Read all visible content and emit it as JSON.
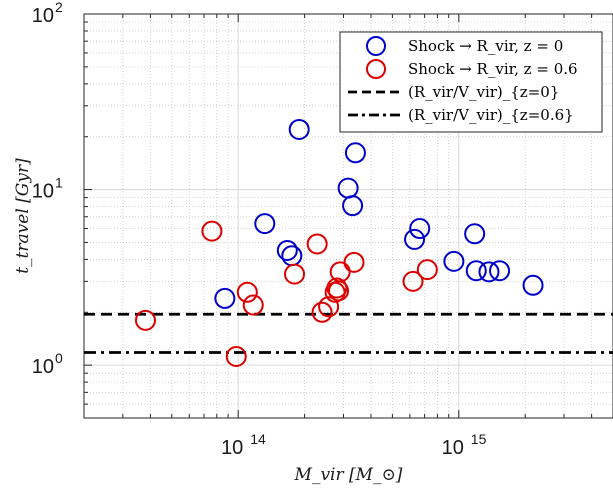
{
  "chart_data": {
    "type": "scatter",
    "title": "",
    "xlabel": "M_vir [M_⊙]",
    "ylabel": "t_travel [Gyr]",
    "xscale": "log",
    "yscale": "log",
    "xlim": [
      20000000000000,
      5000000000000000
    ],
    "ylim": [
      0.5,
      100
    ],
    "grid": true,
    "legend_position": "top-right",
    "x_ticks": [
      {
        "value": 100000000000000,
        "base": "10",
        "exp": "14"
      },
      {
        "value": 1000000000000000,
        "base": "10",
        "exp": "15"
      }
    ],
    "y_ticks": [
      {
        "value": 1,
        "base": "10",
        "exp": "0"
      },
      {
        "value": 10,
        "base": "10",
        "exp": "1"
      },
      {
        "value": 100,
        "base": "10",
        "exp": "2"
      }
    ],
    "series": [
      {
        "name": "Shock → R_vir, z = 0",
        "color": "#0000cc",
        "marker": "circle-open",
        "points": [
          {
            "x": 87000000000000,
            "y": 2.4
          },
          {
            "x": 132000000000000,
            "y": 6.4
          },
          {
            "x": 167000000000000,
            "y": 4.5
          },
          {
            "x": 175000000000000,
            "y": 4.2
          },
          {
            "x": 189000000000000,
            "y": 22
          },
          {
            "x": 315000000000000,
            "y": 10.2
          },
          {
            "x": 330000000000000,
            "y": 8.1
          },
          {
            "x": 340000000000000,
            "y": 16.2
          },
          {
            "x": 630000000000000,
            "y": 5.2
          },
          {
            "x": 665000000000000,
            "y": 6.0
          },
          {
            "x": 950000000000000,
            "y": 3.9
          },
          {
            "x": 1180000000000000,
            "y": 5.6
          },
          {
            "x": 1200000000000000,
            "y": 3.45
          },
          {
            "x": 1370000000000000,
            "y": 3.4
          },
          {
            "x": 1530000000000000,
            "y": 3.45
          },
          {
            "x": 2170000000000000,
            "y": 2.85
          }
        ]
      },
      {
        "name": "Shock → R_vir, z = 0.6",
        "color": "#dd0000",
        "marker": "circle-open",
        "points": [
          {
            "x": 38000000000000,
            "y": 1.8
          },
          {
            "x": 76000000000000,
            "y": 5.8
          },
          {
            "x": 98000000000000,
            "y": 1.12
          },
          {
            "x": 110000000000000,
            "y": 2.6
          },
          {
            "x": 117000000000000,
            "y": 2.2
          },
          {
            "x": 180000000000000,
            "y": 3.3
          },
          {
            "x": 228000000000000,
            "y": 4.9
          },
          {
            "x": 240000000000000,
            "y": 2.0
          },
          {
            "x": 257000000000000,
            "y": 2.15
          },
          {
            "x": 275000000000000,
            "y": 2.6
          },
          {
            "x": 280000000000000,
            "y": 2.75
          },
          {
            "x": 285000000000000,
            "y": 2.65
          },
          {
            "x": 290000000000000,
            "y": 3.4
          },
          {
            "x": 335000000000000,
            "y": 3.85
          },
          {
            "x": 620000000000000,
            "y": 3.0
          },
          {
            "x": 720000000000000,
            "y": 3.5
          }
        ]
      }
    ],
    "reference_lines": [
      {
        "name": "(R_vir/V_vir)_{z=0}",
        "y": 1.95,
        "style": "dashed",
        "color": "#000000"
      },
      {
        "name": "(R_vir/V_vir)_{z=0.6}",
        "y": 1.18,
        "style": "dashdot",
        "color": "#000000"
      }
    ]
  }
}
